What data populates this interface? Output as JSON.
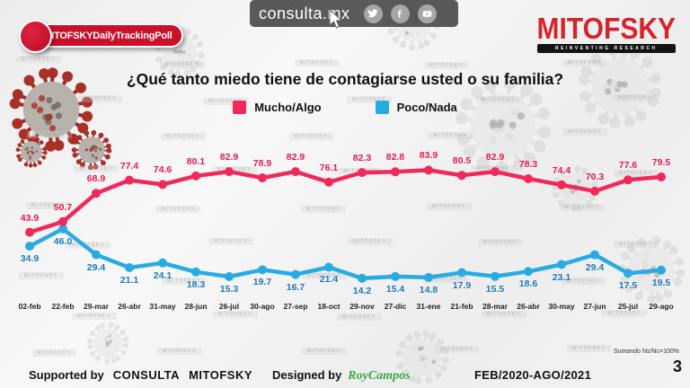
{
  "page": {
    "page_number": "3"
  },
  "top_bar": {
    "site": "consulta.mx",
    "icons": [
      {
        "name": "twitter-icon"
      },
      {
        "name": "facebook-icon"
      },
      {
        "name": "youtube-icon"
      }
    ]
  },
  "badge": {
    "label": "#MITOFSKYDailyTrackingPoll"
  },
  "logo": {
    "name": "MITOFSKY",
    "tagline": "REINVENTING RESEARCH"
  },
  "chart_data": {
    "type": "line",
    "title": "¿Qué tanto miedo tiene de contagiarse usted o su familia?",
    "categories": [
      "02-feb",
      "22-feb",
      "29-mar",
      "26-abr",
      "31-may",
      "28-jun",
      "26-jul",
      "30-ago",
      "27-sep",
      "18-oct",
      "29-nov",
      "27-dic",
      "31-ene",
      "21-feb",
      "28-mar",
      "26-abr",
      "30-may",
      "27-jun",
      "25-jul",
      "29-ago"
    ],
    "series": [
      {
        "name": "Mucho/Algo",
        "color": "#f0295b",
        "label_color": "#e6164d",
        "values": [
          43.9,
          50.7,
          68.9,
          77.4,
          74.6,
          80.1,
          82.9,
          78.9,
          82.9,
          76.1,
          82.3,
          82.8,
          83.9,
          80.5,
          82.9,
          78.3,
          74.4,
          70.3,
          77.6,
          79.5
        ]
      },
      {
        "name": "Poco/Nada",
        "color": "#29abe2",
        "label_color": "#1b75bc",
        "values": [
          34.9,
          46.0,
          29.4,
          21.1,
          24.1,
          18.3,
          15.3,
          19.7,
          16.7,
          21.4,
          14.2,
          15.4,
          14.8,
          17.9,
          15.5,
          18.6,
          23.1,
          29.4,
          17.5,
          19.5
        ]
      }
    ],
    "note": "Sumando Ns/Nc=100%",
    "legend_position": "top",
    "grid": false,
    "ylim": [
      0,
      100
    ]
  },
  "footer": {
    "supported_by_label": "Supported by",
    "brand_1": "CONSULTA",
    "brand_2": "MITOFSKY",
    "designed_by_label": "Designed by",
    "designer": "RoyCampos",
    "period": "FEB/2020-AGO/2021"
  },
  "decor": {
    "watermark_text": "MITOFSKY"
  }
}
